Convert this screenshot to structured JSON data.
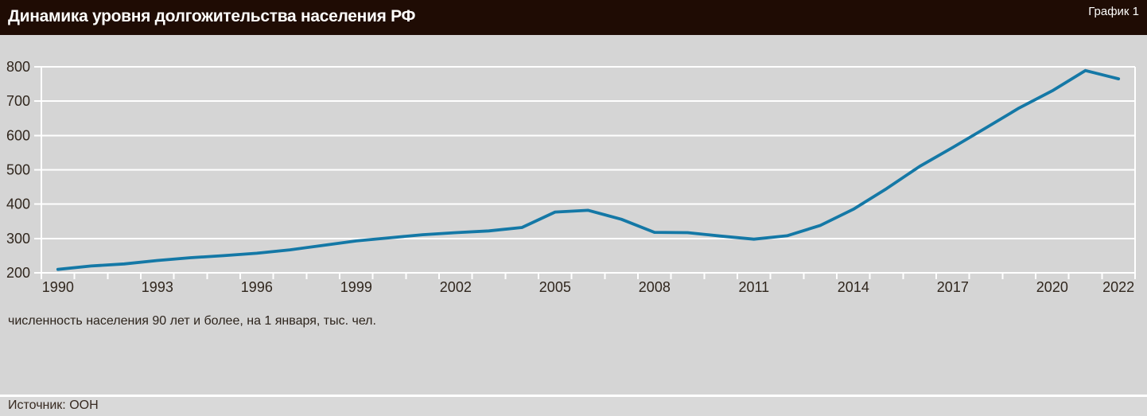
{
  "header": {
    "title": "Динамика уровня долгожительства населения РФ",
    "figure_label": "График 1"
  },
  "chart_data": {
    "type": "line",
    "title": "Динамика уровня долгожительства населения РФ",
    "xlabel": "",
    "ylabel": "",
    "xlim": [
      1990,
      2022
    ],
    "ylim": [
      200,
      800
    ],
    "y_ticks": [
      200,
      300,
      400,
      500,
      600,
      700,
      800
    ],
    "x_labeled_ticks": [
      1990,
      1993,
      1996,
      1999,
      2002,
      2005,
      2008,
      2011,
      2014,
      2017,
      2020,
      2022
    ],
    "x_minor_tick_step": 1,
    "grid": "horizontal white gridlines on gray background",
    "legend_position": "none",
    "categories": [
      1990,
      1991,
      1992,
      1993,
      1994,
      1995,
      1996,
      1997,
      1998,
      1999,
      2000,
      2001,
      2002,
      2003,
      2004,
      2005,
      2006,
      2007,
      2008,
      2009,
      2010,
      2011,
      2012,
      2013,
      2014,
      2015,
      2016,
      2017,
      2018,
      2019,
      2020,
      2021,
      2022
    ],
    "series": [
      {
        "name": "численность населения 90 лет и более, на 1 января, тыс. чел.",
        "color": "#1478a6",
        "values": [
          210,
          220,
          226,
          236,
          244,
          250,
          257,
          267,
          280,
          293,
          302,
          311,
          317,
          322,
          332,
          377,
          382,
          356,
          318,
          317,
          307,
          298,
          308,
          338,
          385,
          445,
          510,
          565,
          622,
          680,
          730,
          789,
          765
        ]
      }
    ]
  },
  "footnote": "численность населения 90 лет и более, на 1 января, тыс. чел.",
  "source": {
    "label": "Источник: ООН"
  },
  "colors": {
    "header_bg": "#1f0c04",
    "header_text": "#fdfdfb",
    "chart_bg": "#d5d5d5",
    "grid_line": "#ffffff",
    "axis_line": "#ffffff",
    "tick_text": "#30261d",
    "series_line": "#1478a6",
    "source_bar_bg": "#d9d9d9"
  }
}
